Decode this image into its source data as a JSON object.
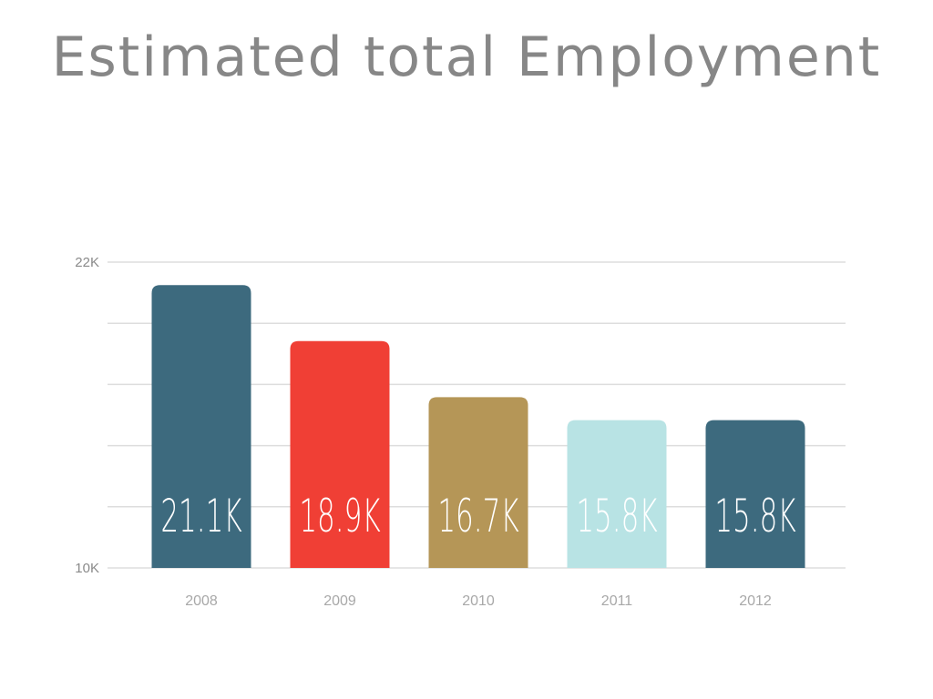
{
  "chart_data": {
    "type": "bar",
    "title": "Estimated total Employment",
    "xlabel": "",
    "ylabel": "",
    "categories": [
      "2008",
      "2009",
      "2010",
      "2011",
      "2012"
    ],
    "values": [
      21.1,
      18.9,
      16.7,
      15.8,
      15.8
    ],
    "data_labels": [
      "21.1K",
      "18.9K",
      "16.7K",
      "15.8K",
      "15.8K"
    ],
    "colors": [
      "#3d6a7e",
      "#f03f35",
      "#b59657",
      "#b8e3e4",
      "#3d6a7e"
    ],
    "ylim": [
      10,
      22
    ],
    "ytick_values": [
      10,
      22
    ],
    "ytick_labels": [
      "10K",
      "22K"
    ],
    "gridlines": [
      10,
      12.4,
      14.8,
      17.2,
      19.6,
      22
    ],
    "grid": true,
    "units": "thousands"
  }
}
